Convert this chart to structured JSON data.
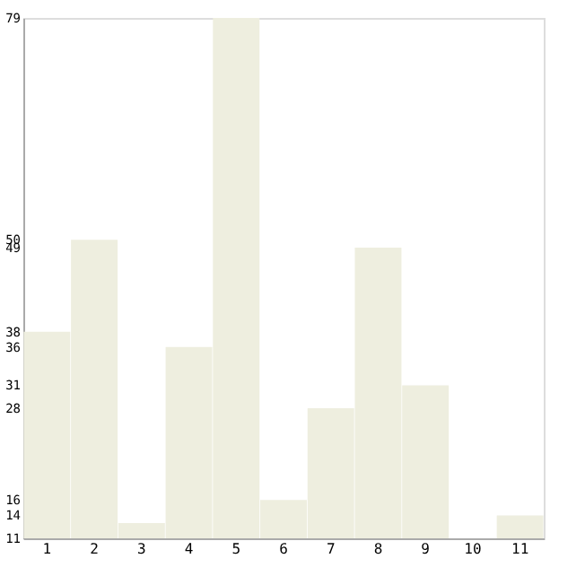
{
  "chart_data": {
    "type": "bar",
    "categories": [
      "1",
      "2",
      "3",
      "4",
      "5",
      "6",
      "7",
      "8",
      "9",
      "10",
      "11"
    ],
    "values": [
      38,
      50,
      13,
      36,
      79,
      16,
      28,
      49,
      31,
      11,
      14
    ],
    "color": "#eeeedf",
    "ylim": [
      11,
      79
    ],
    "yticks": [
      11,
      14,
      16,
      28,
      31,
      36,
      38,
      49,
      50,
      79
    ],
    "grid": false
  }
}
